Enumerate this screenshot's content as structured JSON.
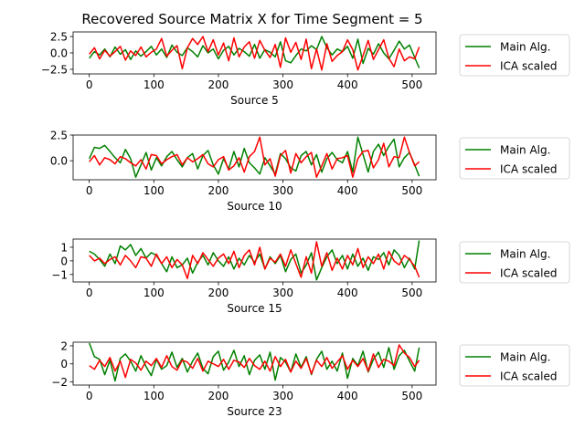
{
  "figure": {
    "title": "Recovered Source Matrix X for Time Segment  = 5"
  },
  "legend_labels": [
    "Main Alg.",
    "ICA scaled"
  ],
  "colors": {
    "main": "#008000",
    "ica": "#ff0000"
  },
  "chart_data": [
    {
      "type": "line",
      "xlabel": "Source 5",
      "xlim": [
        -25,
        537
      ],
      "ylim": [
        -3.2,
        3.2
      ],
      "xticks": [
        0,
        100,
        200,
        300,
        400,
        500
      ],
      "yticks": [
        -2.5,
        0.0,
        2.5
      ],
      "ytick_labels": [
        "−2.5",
        "0.0",
        "2.5"
      ],
      "legend": "right-outside",
      "x": [
        0,
        8,
        16,
        24,
        32,
        40,
        48,
        56,
        64,
        72,
        80,
        88,
        96,
        104,
        112,
        120,
        128,
        136,
        144,
        152,
        160,
        168,
        176,
        184,
        192,
        200,
        208,
        216,
        224,
        232,
        240,
        248,
        256,
        264,
        272,
        280,
        288,
        296,
        304,
        312,
        320,
        328,
        336,
        344,
        352,
        360,
        368,
        376,
        384,
        392,
        400,
        408,
        416,
        424,
        432,
        440,
        448,
        456,
        464,
        472,
        480,
        488,
        496,
        504,
        511
      ],
      "series": [
        {
          "name": "Main Alg.",
          "color": "main",
          "values": [
            -0.8,
            0.2,
            -0.3,
            0.6,
            -0.6,
            0.9,
            -0.2,
            0.5,
            -1.0,
            0.3,
            -0.5,
            0.2,
            1.0,
            -0.3,
            0.6,
            -0.7,
            1.2,
            0.1,
            -0.4,
            0.8,
            0.2,
            -0.6,
            1.1,
            0.0,
            0.6,
            -0.9,
            0.4,
            1.0,
            -0.3,
            0.7,
            0.2,
            -0.5,
            1.3,
            -0.8,
            0.5,
            0.1,
            -0.6,
            1.7,
            -1.2,
            -1.5,
            -0.4,
            0.6,
            0.3,
            1.1,
            0.5,
            2.5,
            0.8,
            -0.3,
            0.6,
            0.2,
            1.0,
            -0.8,
            2.1,
            -1.6,
            0.7,
            -0.2,
            1.4,
            0.0,
            -0.9,
            0.4,
            1.8,
            0.6,
            1.2,
            -0.7,
            -2.3
          ]
        },
        {
          "name": "ICA scaled",
          "color": "ica",
          "values": [
            -0.2,
            0.8,
            -0.9,
            0.4,
            -0.5,
            0.2,
            1.0,
            -1.1,
            0.3,
            -0.4,
            0.9,
            -0.6,
            0.1,
            0.6,
            2.2,
            -0.5,
            0.4,
            1.1,
            -2.4,
            0.8,
            2.2,
            1.3,
            2.5,
            0.2,
            2.0,
            -0.3,
            1.5,
            -1.2,
            2.3,
            -0.6,
            0.9,
            1.7,
            -0.8,
            1.9,
            0.4,
            -0.7,
            1.3,
            -2.2,
            2.3,
            0.1,
            1.6,
            -1.0,
            2.1,
            -2.4,
            0.6,
            -2.6,
            1.4,
            -1.3,
            -0.4,
            0.2,
            2.0,
            0.5,
            -2.6,
            -0.4,
            1.9,
            -1.0,
            0.5,
            2.0,
            -0.8,
            -2.1,
            0.6,
            -1.2,
            -0.6,
            -0.9,
            0.9
          ]
        }
      ]
    },
    {
      "type": "line",
      "xlabel": "Source 10",
      "xlim": [
        -25,
        537
      ],
      "ylim": [
        -1.85,
        2.5
      ],
      "xticks": [
        0,
        100,
        200,
        300,
        400,
        500
      ],
      "yticks": [
        0.0,
        2.5
      ],
      "ytick_labels": [
        "0.0",
        "2.5"
      ],
      "legend": "right-outside",
      "x": [
        0,
        8,
        16,
        24,
        32,
        40,
        48,
        56,
        64,
        72,
        80,
        88,
        96,
        104,
        112,
        120,
        128,
        136,
        144,
        152,
        160,
        168,
        176,
        184,
        192,
        200,
        208,
        216,
        224,
        232,
        240,
        248,
        256,
        264,
        272,
        280,
        288,
        296,
        304,
        312,
        320,
        328,
        336,
        344,
        352,
        360,
        368,
        376,
        384,
        392,
        400,
        408,
        416,
        424,
        432,
        440,
        448,
        456,
        464,
        472,
        480,
        488,
        496,
        504,
        511
      ],
      "series": [
        {
          "name": "Main Alg.",
          "color": "main",
          "values": [
            0.2,
            1.3,
            1.2,
            1.5,
            0.9,
            0.3,
            -0.2,
            1.1,
            0.2,
            -1.6,
            -0.4,
            0.8,
            -0.9,
            0.3,
            -0.5,
            0.4,
            0.9,
            0.1,
            -0.6,
            0.3,
            0.7,
            -0.8,
            0.5,
            1.0,
            -0.4,
            -1.3,
            0.2,
            -0.8,
            0.9,
            -0.6,
            1.2,
            -0.2,
            -0.7,
            -1.3,
            0.3,
            -0.5,
            -1.3,
            0.7,
            0.2,
            -0.7,
            -1.0,
            0.5,
            0.9,
            -0.4,
            0.6,
            -1.1,
            0.2,
            0.8,
            0.1,
            -0.2,
            0.9,
            -1.1,
            2.3,
            0.6,
            -1.1,
            0.9,
            1.6,
            0.5,
            1.4,
            2.1,
            -0.6,
            0.3,
            0.8,
            -0.4,
            -1.5
          ]
        },
        {
          "name": "ICA scaled",
          "color": "ica",
          "values": [
            -0.1,
            0.5,
            -0.4,
            0.3,
            0.1,
            -0.3,
            0.4,
            0.2,
            -0.2,
            -0.5,
            0.1,
            -0.8,
            0.6,
            0.5,
            -0.3,
            0.1,
            0.4,
            0.6,
            -0.4,
            0.3,
            -0.1,
            0.2,
            0.6,
            -0.3,
            -0.6,
            0.1,
            0.4,
            -0.9,
            -0.5,
            0.3,
            -1.1,
            0.4,
            0.9,
            2.3,
            -0.4,
            0.2,
            -1.5,
            0.5,
            1.0,
            -1.2,
            0.7,
            -0.2,
            0.4,
            0.8,
            -1.6,
            -0.5,
            0.7,
            -0.8,
            0.2,
            0.3,
            0.5,
            -1.6,
            0.2,
            0.9,
            1.0,
            -0.7,
            0.1,
            1.7,
            -0.6,
            0.4,
            0.3,
            2.3,
            0.8,
            -0.5,
            -0.1
          ]
        }
      ]
    },
    {
      "type": "line",
      "xlabel": "Source 15",
      "xlim": [
        -25,
        537
      ],
      "ylim": [
        -1.55,
        1.6
      ],
      "xticks": [
        0,
        100,
        200,
        300,
        400,
        500
      ],
      "yticks": [
        -1,
        0,
        1
      ],
      "ytick_labels": [
        "−1",
        "0",
        "1"
      ],
      "legend": "right-outside",
      "x": [
        0,
        8,
        16,
        24,
        32,
        40,
        48,
        56,
        64,
        72,
        80,
        88,
        96,
        104,
        112,
        120,
        128,
        136,
        144,
        152,
        160,
        168,
        176,
        184,
        192,
        200,
        208,
        216,
        224,
        232,
        240,
        248,
        256,
        264,
        272,
        280,
        288,
        296,
        304,
        312,
        320,
        328,
        336,
        344,
        352,
        360,
        368,
        376,
        384,
        392,
        400,
        408,
        416,
        424,
        432,
        440,
        448,
        456,
        464,
        472,
        480,
        488,
        496,
        504,
        511
      ],
      "series": [
        {
          "name": "Main Alg.",
          "color": "main",
          "values": [
            0.7,
            0.5,
            0.1,
            -0.4,
            0.5,
            -0.2,
            1.1,
            0.8,
            1.2,
            0.4,
            0.9,
            0.2,
            0.6,
            0.4,
            -0.2,
            -0.8,
            0.3,
            -0.5,
            -0.3,
            0.2,
            -0.9,
            -0.1,
            0.4,
            -0.3,
            0.6,
            0.0,
            -0.4,
            0.3,
            -0.6,
            0.2,
            -0.3,
            0.4,
            -0.1,
            0.5,
            -0.6,
            0.3,
            -0.2,
            0.4,
            -0.8,
            0.1,
            0.5,
            -0.9,
            -0.3,
            0.6,
            -1.4,
            -0.5,
            0.3,
            0.8,
            -0.2,
            0.4,
            -0.6,
            0.5,
            -0.4,
            0.2,
            -0.7,
            0.3,
            0.1,
            0.6,
            -0.3,
            0.8,
            0.4,
            -0.5,
            0.2,
            -0.6,
            1.5
          ]
        },
        {
          "name": "ICA scaled",
          "color": "ica",
          "values": [
            0.4,
            0.0,
            0.2,
            -0.2,
            0.1,
            0.3,
            -0.3,
            0.4,
            0.0,
            -0.5,
            0.3,
            0.2,
            -0.4,
            0.5,
            -0.2,
            0.3,
            -0.5,
            0.1,
            -0.3,
            -1.3,
            0.4,
            -0.2,
            0.6,
            0.1,
            -0.4,
            0.2,
            0.5,
            -0.2,
            0.7,
            -0.5,
            0.4,
            0.8,
            -0.3,
            1.0,
            -0.6,
            0.2,
            -0.1,
            0.5,
            -0.4,
            0.8,
            -0.2,
            -1.2,
            0.3,
            -0.9,
            1.4,
            -0.4,
            0.6,
            -0.7,
            0.2,
            -0.6,
            0.4,
            -0.3,
            0.9,
            -0.5,
            0.3,
            -0.2,
            0.5,
            -0.6,
            0.7,
            0.0,
            -0.3,
            0.4,
            0.1,
            -0.4,
            -1.2
          ]
        }
      ]
    },
    {
      "type": "line",
      "xlabel": "Source 23",
      "xlim": [
        -25,
        537
      ],
      "ylim": [
        -2.35,
        2.4
      ],
      "xticks": [
        0,
        100,
        200,
        300,
        400,
        500
      ],
      "yticks": [
        -2,
        0,
        2
      ],
      "ytick_labels": [
        "−2",
        "0",
        "2"
      ],
      "legend": "right-outside",
      "x": [
        0,
        8,
        16,
        24,
        32,
        40,
        48,
        56,
        64,
        72,
        80,
        88,
        96,
        104,
        112,
        120,
        128,
        136,
        144,
        152,
        160,
        168,
        176,
        184,
        192,
        200,
        208,
        216,
        224,
        232,
        240,
        248,
        256,
        264,
        272,
        280,
        288,
        296,
        304,
        312,
        320,
        328,
        336,
        344,
        352,
        360,
        368,
        376,
        384,
        392,
        400,
        408,
        416,
        424,
        432,
        440,
        448,
        456,
        464,
        472,
        480,
        488,
        496,
        504,
        511
      ],
      "series": [
        {
          "name": "Main Alg.",
          "color": "main",
          "values": [
            2.3,
            0.8,
            0.5,
            -1.2,
            0.4,
            -1.9,
            0.6,
            1.1,
            0.3,
            -0.8,
            0.9,
            -0.3,
            -1.3,
            0.5,
            -0.6,
            -0.2,
            1.3,
            -0.4,
            0.6,
            -0.9,
            0.3,
            1.2,
            -0.5,
            -1.1,
            0.8,
            1.4,
            -0.7,
            0.2,
            1.5,
            -0.3,
            0.9,
            -1.2,
            0.4,
            1.0,
            -0.6,
            1.3,
            -1.8,
            0.7,
            0.2,
            -0.9,
            1.1,
            -0.4,
            0.8,
            -1.2,
            0.5,
            1.4,
            -0.6,
            0.3,
            -0.8,
            1.2,
            -1.6,
            0.6,
            -0.2,
            1.4,
            -0.9,
            0.5,
            1.3,
            -0.4,
            1.8,
            -0.6,
            0.9,
            1.5,
            0.3,
            -0.8,
            1.8
          ]
        },
        {
          "name": "ICA scaled",
          "color": "ica",
          "values": [
            -0.2,
            -0.6,
            0.4,
            -0.3,
            0.7,
            -0.8,
            0.3,
            -1.5,
            0.5,
            0.1,
            -0.7,
            0.3,
            -0.2,
            0.6,
            -0.4,
            0.9,
            -0.3,
            -0.7,
            0.4,
            0.2,
            -0.5,
            0.6,
            -0.8,
            0.3,
            0.0,
            -0.3,
            0.5,
            -0.6,
            0.4,
            0.2,
            -0.4,
            0.6,
            -0.2,
            -0.6,
            0.3,
            -0.8,
            0.8,
            -0.3,
            0.5,
            -0.9,
            0.3,
            -0.5,
            0.6,
            -1.1,
            0.4,
            -0.3,
            0.7,
            -0.5,
            0.2,
            0.9,
            -0.6,
            0.4,
            -0.3,
            0.6,
            -0.8,
            1.1,
            -0.4,
            0.5,
            0.3,
            -0.2,
            2.1,
            1.2,
            0.7,
            -0.3,
            0.4
          ]
        }
      ]
    }
  ]
}
